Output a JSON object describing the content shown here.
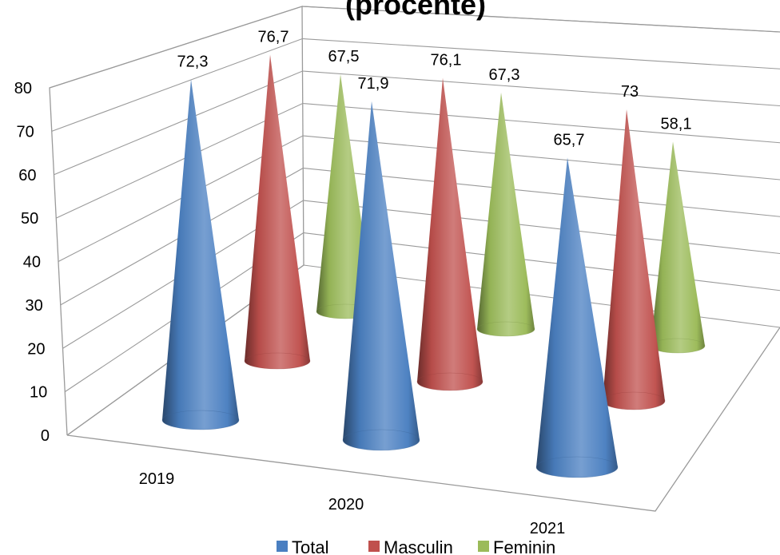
{
  "chart_data": {
    "type": "bar",
    "title": "(procente)",
    "categories": [
      "2019",
      "2020",
      "2021"
    ],
    "ylim": [
      0,
      80
    ],
    "yticks": [
      "0",
      "10",
      "20",
      "30",
      "40",
      "50",
      "60",
      "70",
      "80"
    ],
    "grid": true,
    "legend_position": "bottom",
    "series": [
      {
        "name": "Total",
        "color": "#4a7fc1",
        "values": [
          72.3,
          71.9,
          65.7
        ],
        "labels": [
          "72,3",
          "71,9",
          "65,7"
        ]
      },
      {
        "name": "Masculin",
        "color": "#c0504d",
        "values": [
          76.7,
          76.1,
          73
        ],
        "labels": [
          "76,7",
          "76,1",
          "73"
        ]
      },
      {
        "name": "Feminin",
        "color": "#9bbb59",
        "values": [
          67.5,
          67.3,
          58.1
        ],
        "labels": [
          "67,5",
          "67,3",
          "58,1"
        ]
      }
    ]
  }
}
